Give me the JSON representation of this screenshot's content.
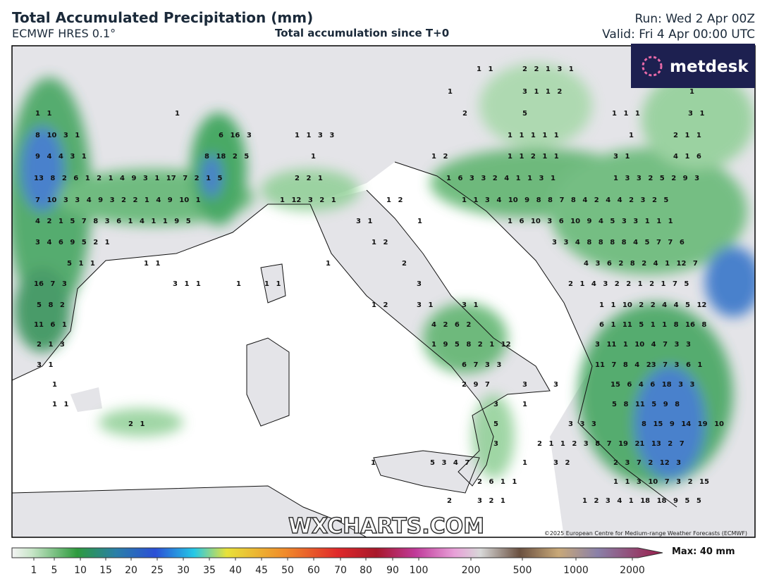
{
  "header": {
    "title": "Total Accumulated Precipitation (mm)",
    "model": "ECMWF HRES 0.1°",
    "subtitle": "Total accumulation since T+0",
    "run": "Run: Wed 2 Apr 00Z",
    "valid": "Valid: Fri 4 Apr 00:00 UTC"
  },
  "logo": "metdesk",
  "watermark": "WXCHARTS.COM",
  "copyright": "©2025 European Centre for Medium-range Weather Forecasts (ECMWF)",
  "map_labels": [
    "1 1",
    "2 2 1 3 1",
    "1",
    "3 1 1 2",
    "1",
    "1 1",
    "1",
    "2",
    "5",
    "1 1 1",
    "3 1",
    "8 10 3 1",
    "6 16 3",
    "1 1 3 3",
    "1 1 1 1 1",
    "1",
    "2 1 1",
    "9 4 4 3 1",
    "8 18 2 5",
    "1",
    "1 2",
    "1 1 2 1 1",
    "3 1",
    "4 1 6",
    "13 8 2 6 1 2 1 4 9 3 1 17 7 2 1 5",
    "2 2 1",
    "1 6 3 3 2 4 1 1 3 1",
    "1 3 3 2 5 2 9 3",
    "7 10 3 3 4 9 3 2 2 1 4 9 10 1",
    "1 12 3 2 1",
    "1 2",
    "1 1 3 4 10 9 8 8 7 8 4 2 4 4 2 3 2 5",
    "4 2 1 5 7 8 3 6 1 4 1 1 9 5",
    "3 1",
    "1",
    "1 6 10 3 6 10 9 4 5 3 3 1 1 1",
    "3 4 6 9 5 2 1",
    "1 2",
    "3 3 4 8 8 8 8 4 5 7 7 6",
    "5 1 1",
    "1 1",
    "1",
    "2",
    "4 3 6 2 8 2 4 1 12 7",
    "16 7 3",
    "3 1 1",
    "1",
    "1 1",
    "3",
    "2 1 4 3 2 2 1 2 1 7 5",
    "5 8 2",
    "1 2",
    "3 1",
    "3 1",
    "1 1 10 2 2 4 4 5 12",
    "11 6 1",
    "4 2 6 2",
    "6 1 11 5 1 1 8 16 8",
    "2 1 3",
    "1 9 5 8 2 1 12",
    "3 11 1 10 4 7 3 3",
    "3 1",
    "6 7 3 3",
    "11 7 8 4 23 7 3 6 1",
    "1",
    "2 9 7",
    "3",
    "3",
    "15 6 4 6 18 3 3",
    "1 1",
    "3",
    "1",
    "5 8 11 5 9 8",
    "2 1",
    "5",
    "3 3 3",
    "8 15 9 14 19 10",
    "3",
    "2 1 1 2 3 8 7 19 21 13 2 7",
    "1",
    "5 3 4 7",
    "1",
    "3 2",
    "2 3 7 2 12 3",
    "2 6 1 1",
    "1 1 3 10 7 3 2 15",
    "2",
    "3 2 1",
    "1 2 3 4 1 18 18 9 5 5"
  ],
  "colorbar": {
    "ticks": [
      1,
      5,
      10,
      15,
      20,
      25,
      30,
      35,
      40,
      45,
      50,
      60,
      70,
      80,
      90,
      100,
      200,
      500,
      1000,
      2000
    ],
    "max_label": "Max: 40 mm"
  }
}
